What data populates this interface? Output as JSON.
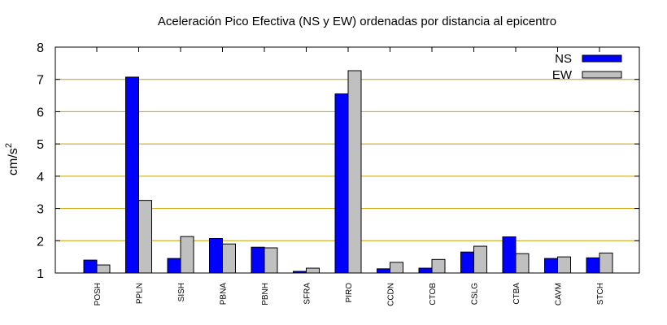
{
  "chart_data": {
    "type": "bar",
    "title": "Aceleración Pico Efectiva (NS y EW) ordenadas por distancia al epicentro",
    "ylabel": "cm/s",
    "ylabel_sup": "2",
    "xlabel": "",
    "ylim": [
      1,
      8
    ],
    "yticks": [
      1,
      2,
      3,
      4,
      5,
      6,
      7,
      8
    ],
    "grid": true,
    "legend_position": "top-right",
    "categories": [
      "POSH",
      "PPLN",
      "SISH",
      "PBNA",
      "PBNH",
      "SFRA",
      "PIRO",
      "CCDN",
      "CTOB",
      "CSLG",
      "CTBA",
      "CAVM",
      "STCH"
    ],
    "series": [
      {
        "name": "NS",
        "color": "#0000ff",
        "values": [
          1.4,
          7.07,
          1.45,
          2.07,
          1.8,
          1.05,
          6.55,
          1.13,
          1.15,
          1.65,
          2.12,
          1.45,
          1.47
        ]
      },
      {
        "name": "EW",
        "color": "#c0c0c0",
        "values": [
          1.25,
          3.25,
          2.13,
          1.9,
          1.78,
          1.15,
          7.27,
          1.33,
          1.42,
          1.83,
          1.6,
          1.5,
          1.62
        ]
      }
    ],
    "gridline_color": "#c8a000"
  }
}
